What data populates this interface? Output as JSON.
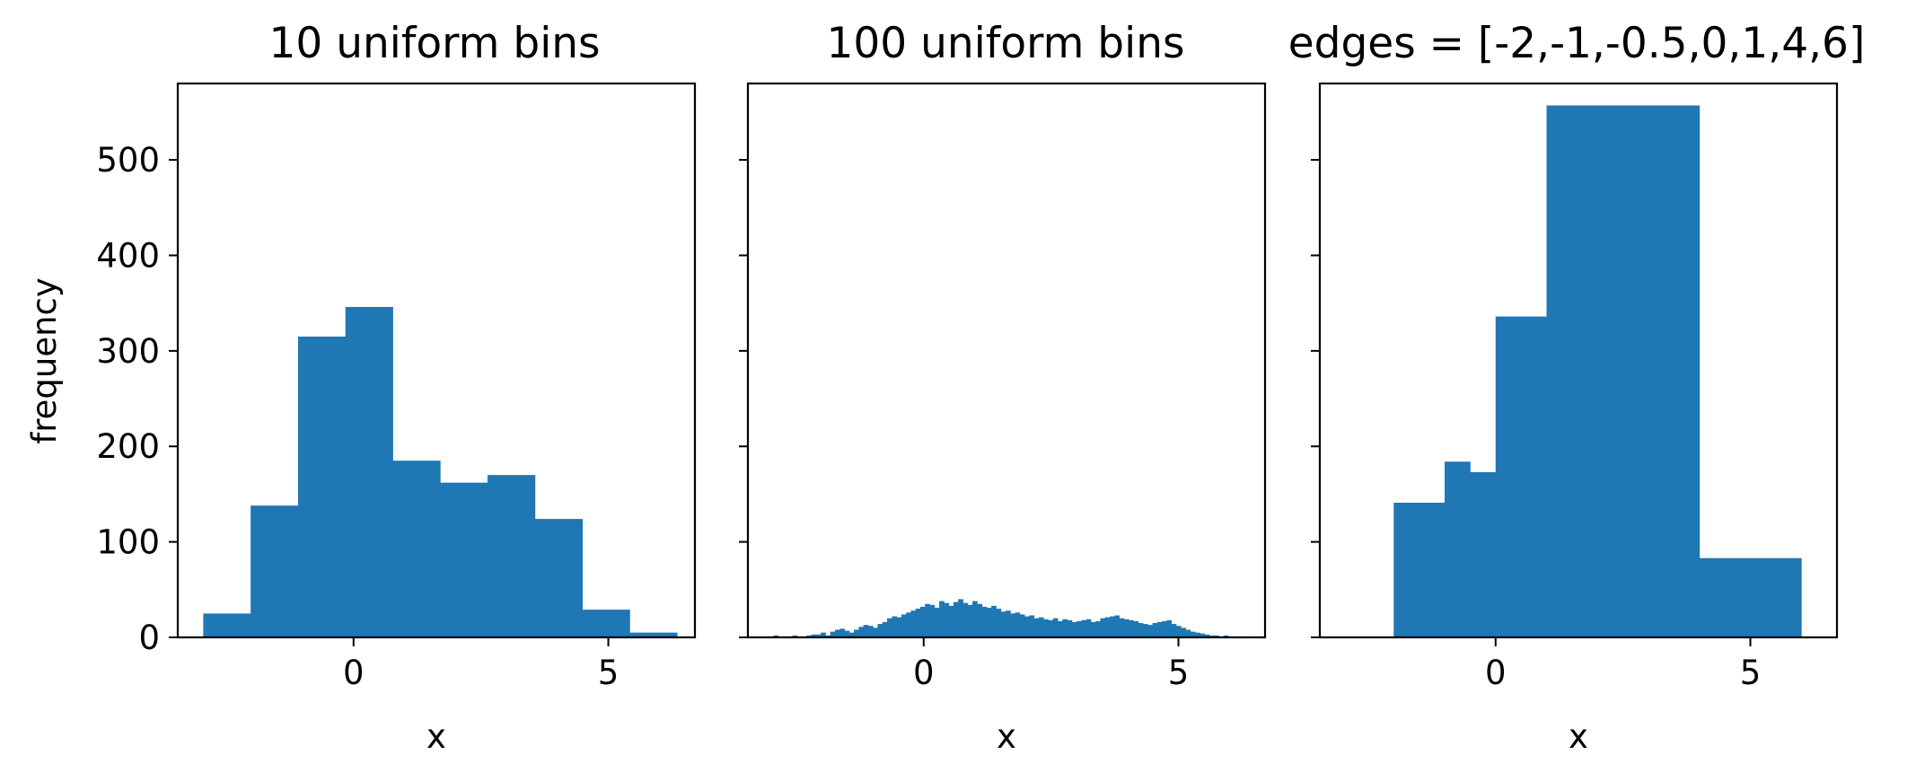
{
  "colors": {
    "bar": "#1f77b4",
    "axis": "#000000"
  },
  "shared_axes": {
    "ylim": [
      0,
      580
    ],
    "yticks": [
      0,
      100,
      200,
      300,
      400,
      500
    ],
    "ylabel": "frequency"
  },
  "chart_data": [
    {
      "type": "bar",
      "title": "10 uniform bins",
      "xlabel": "x",
      "ylabel": "frequency",
      "xlim": [
        -3.45,
        6.7
      ],
      "ylim": [
        0,
        580
      ],
      "xticks": [
        0,
        5
      ],
      "yticks": [
        0,
        100,
        200,
        300,
        400,
        500
      ],
      "edges": [
        -2.95,
        -2.02,
        -1.09,
        -0.16,
        0.77,
        1.7,
        2.63,
        3.56,
        4.49,
        5.42,
        6.35
      ],
      "values": [
        25,
        138,
        315,
        346,
        185,
        162,
        170,
        124,
        29,
        5
      ]
    },
    {
      "type": "bar",
      "title": "100 uniform bins",
      "xlabel": "x",
      "xlim": [
        -3.45,
        6.7
      ],
      "ylim": [
        0,
        580
      ],
      "xticks": [
        0,
        5
      ],
      "edges_range": [
        -2.95,
        6.35
      ],
      "values": [
        2,
        0,
        1,
        0,
        2,
        1,
        0,
        2,
        3,
        3,
        5,
        2,
        6,
        8,
        9,
        7,
        5,
        8,
        11,
        13,
        12,
        10,
        14,
        16,
        20,
        22,
        21,
        24,
        26,
        28,
        30,
        32,
        35,
        34,
        31,
        38,
        36,
        33,
        37,
        40,
        36,
        34,
        38,
        35,
        32,
        31,
        33,
        30,
        27,
        28,
        25,
        26,
        24,
        22,
        23,
        20,
        21,
        19,
        18,
        20,
        17,
        19,
        18,
        16,
        17,
        18,
        19,
        16,
        17,
        20,
        21,
        22,
        23,
        20,
        19,
        18,
        17,
        15,
        14,
        13,
        15,
        16,
        17,
        18,
        14,
        12,
        10,
        8,
        6,
        5,
        4,
        3,
        2,
        2,
        1,
        2,
        1,
        0,
        1,
        1
      ]
    },
    {
      "type": "bar",
      "title": "edges = [-2,-1,-0.5,0,1,4,6]",
      "xlabel": "x",
      "xlim": [
        -3.45,
        6.7
      ],
      "ylim": [
        0,
        580
      ],
      "xticks": [
        0,
        5
      ],
      "edges": [
        -2,
        -1,
        -0.5,
        0,
        1,
        4,
        6
      ],
      "values": [
        141,
        184,
        173,
        336,
        557,
        83
      ]
    }
  ]
}
